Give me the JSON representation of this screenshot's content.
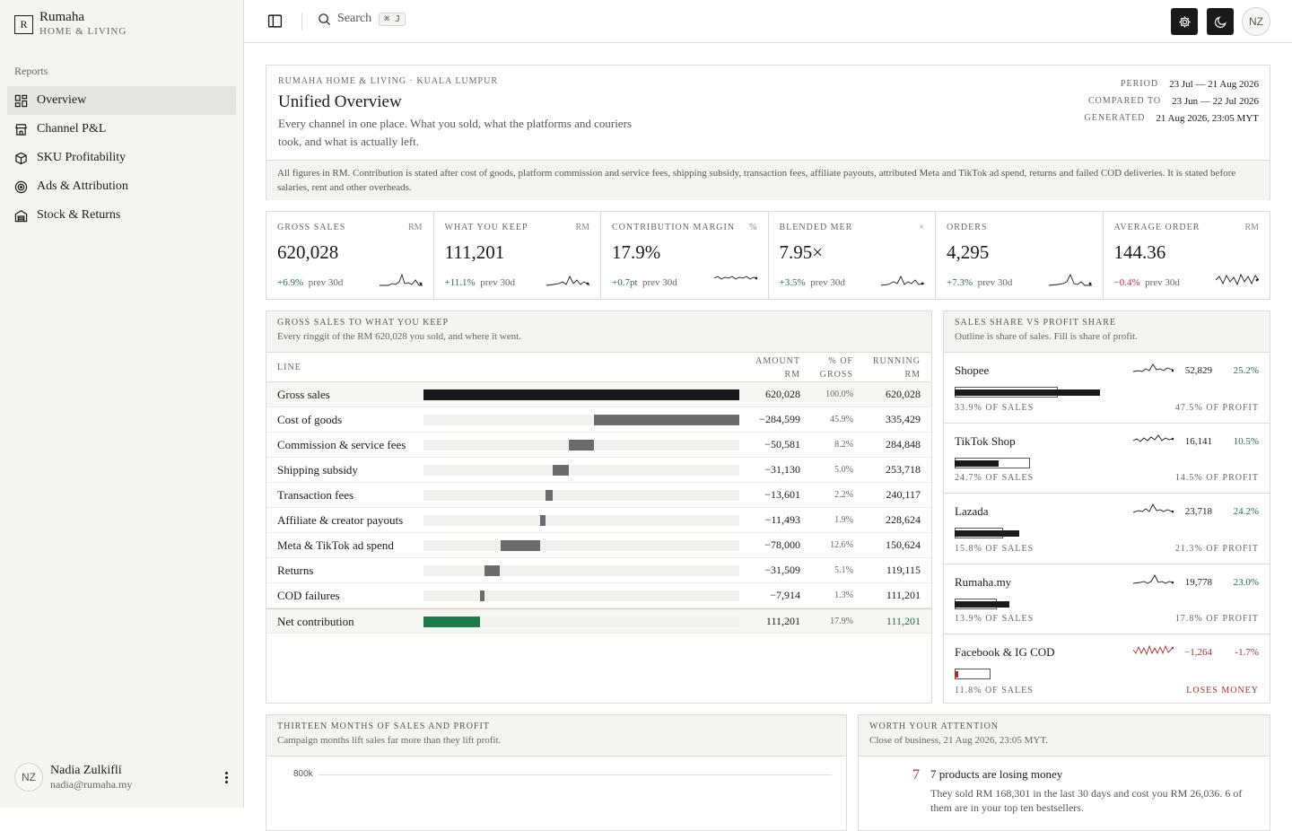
{
  "brand": {
    "initial": "R",
    "name": "Rumaha",
    "sub": "HOME & LIVING"
  },
  "nav": {
    "heading": "Reports",
    "items": [
      {
        "label": "Overview",
        "icon": "grid-icon"
      },
      {
        "label": "Channel P&L",
        "icon": "store-icon"
      },
      {
        "label": "SKU Profitability",
        "icon": "box-icon"
      },
      {
        "label": "Ads & Attribution",
        "icon": "target-icon"
      },
      {
        "label": "Stock & Returns",
        "icon": "warehouse-icon"
      }
    ]
  },
  "user": {
    "initials": "NZ",
    "name": "Nadia Zulkifli",
    "email": "nadia@rumaha.my"
  },
  "topbar": {
    "search_label": "Search",
    "shortcut": "⌘ J",
    "avatar": "NZ"
  },
  "header": {
    "eyebrow": "RUMAHA HOME & LIVING · KUALA LUMPUR",
    "title": "Unified Overview",
    "desc": "Every channel in one place. What you sold, what the platforms and couriers took, and what is actually left.",
    "meta": [
      {
        "k": "PERIOD",
        "v": "23 Jul — 21 Aug 2026"
      },
      {
        "k": "COMPARED TO",
        "v": "23 Jun — 22 Jul 2026"
      },
      {
        "k": "GENERATED",
        "v": "21 Aug 2026, 23:05 MYT"
      }
    ],
    "note": "All figures in RM. Contribution is stated after cost of goods, platform commission and service fees, shipping subsidy, transaction fees, affiliate payouts, attributed Meta and TikTok ad spend, returns and failed COD deliveries. It is stated before salaries, rent and other overheads."
  },
  "kpis": [
    {
      "label": "GROSS SALES",
      "unit": "RM",
      "value": "620,028",
      "delta": "+6.9%",
      "prev": "prev 30d",
      "neg": false
    },
    {
      "label": "WHAT YOU KEEP",
      "unit": "RM",
      "value": "111,201",
      "delta": "+11.1%",
      "prev": "prev 30d",
      "neg": false
    },
    {
      "label": "CONTRIBUTION MARGIN",
      "unit": "%",
      "value": "17.9%",
      "delta": "+0.7pt",
      "prev": "prev 30d",
      "neg": false
    },
    {
      "label": "BLENDED MER",
      "unit": "×",
      "value": "7.95×",
      "delta": "+3.5%",
      "prev": "prev 30d",
      "neg": false
    },
    {
      "label": "ORDERS",
      "unit": "",
      "value": "4,295",
      "delta": "+7.3%",
      "prev": "prev 30d",
      "neg": false
    },
    {
      "label": "AVERAGE ORDER",
      "unit": "RM",
      "value": "144.36",
      "delta": "−0.4%",
      "prev": "prev 30d",
      "neg": true
    }
  ],
  "waterfall": {
    "title": "GROSS SALES TO WHAT YOU KEEP",
    "sub": "Every ringgit of the RM 620,028 you sold, and where it went.",
    "cols": {
      "line": "LINE",
      "amount": "AMOUNT",
      "amount_unit": "RM",
      "pct": "% OF",
      "pct2": "GROSS",
      "run": "RUNNING",
      "run_unit": "RM"
    },
    "rows": [
      {
        "label": "Gross sales",
        "amount": "620,028",
        "pct": "100.0%",
        "run": "620,028",
        "start": 0,
        "end": 620028,
        "kind": "total"
      },
      {
        "label": "Cost of goods",
        "amount": "−284,599",
        "pct": "45.9%",
        "run": "335,429",
        "start": 335429,
        "end": 620028,
        "kind": "cost"
      },
      {
        "label": "Commission & service fees",
        "amount": "−50,581",
        "pct": "8.2%",
        "run": "284,848",
        "start": 284848,
        "end": 335429,
        "kind": "cost"
      },
      {
        "label": "Shipping subsidy",
        "amount": "−31,130",
        "pct": "5.0%",
        "run": "253,718",
        "start": 253718,
        "end": 284848,
        "kind": "cost"
      },
      {
        "label": "Transaction fees",
        "amount": "−13,601",
        "pct": "2.2%",
        "run": "240,117",
        "start": 240117,
        "end": 253718,
        "kind": "cost"
      },
      {
        "label": "Affiliate & creator payouts",
        "amount": "−11,493",
        "pct": "1.9%",
        "run": "228,624",
        "start": 228624,
        "end": 240117,
        "kind": "cost"
      },
      {
        "label": "Meta & TikTok ad spend",
        "amount": "−78,000",
        "pct": "12.6%",
        "run": "150,624",
        "start": 150624,
        "end": 228624,
        "kind": "cost"
      },
      {
        "label": "Returns",
        "amount": "−31,509",
        "pct": "5.1%",
        "run": "119,115",
        "start": 119115,
        "end": 150624,
        "kind": "cost"
      },
      {
        "label": "COD failures",
        "amount": "−7,914",
        "pct": "1.3%",
        "run": "111,201",
        "start": 111201,
        "end": 119115,
        "kind": "cost"
      },
      {
        "label": "Net contribution",
        "amount": "111,201",
        "pct": "17.9%",
        "run": "111,201",
        "start": 0,
        "end": 111201,
        "kind": "net"
      }
    ]
  },
  "share": {
    "title": "SALES SHARE VS PROFIT SHARE",
    "sub": "Outline is share of sales. Fill is share of profit.",
    "rows": [
      {
        "name": "Shopee",
        "value": "52,829",
        "pct": "25.2%",
        "sales_share": 33.9,
        "profit_share": 47.5,
        "left": "33.9% OF SALES",
        "right": "47.5% OF PROFIT",
        "neg": false
      },
      {
        "name": "TikTok Shop",
        "value": "16,141",
        "pct": "10.5%",
        "sales_share": 24.7,
        "profit_share": 14.5,
        "left": "24.7% OF SALES",
        "right": "14.5% OF PROFIT",
        "neg": false
      },
      {
        "name": "Lazada",
        "value": "23,718",
        "pct": "24.2%",
        "sales_share": 15.8,
        "profit_share": 21.3,
        "left": "15.8% OF SALES",
        "right": "21.3% OF PROFIT",
        "neg": false
      },
      {
        "name": "Rumaha.my",
        "value": "19,778",
        "pct": "23.0%",
        "sales_share": 13.9,
        "profit_share": 17.8,
        "left": "13.9% OF SALES",
        "right": "17.8% OF PROFIT",
        "neg": false
      },
      {
        "name": "Facebook & IG COD",
        "value": "−1,264",
        "pct": "-1.7%",
        "sales_share": 11.8,
        "profit_share": 1.1,
        "left": "11.8% OF SALES",
        "right": "LOSES MONEY",
        "neg": true
      }
    ]
  },
  "months": {
    "title": "THIRTEEN MONTHS OF SALES AND PROFIT",
    "sub": "Campaign months lift sales far more than they lift profit.",
    "y_tick": "800k"
  },
  "attention": {
    "title": "WORTH YOUR ATTENTION",
    "sub": "Close of business, 21 Aug 2026, 23:05 MYT.",
    "items": [
      {
        "num": "7",
        "title": "7 products are losing money",
        "body": "They sold RM 168,301 in the last 30 days and cost you RM 26,036. 6 of them are in your top ten bestsellers."
      }
    ]
  },
  "colors": {
    "ink": "#1a1a1a",
    "positive": "#2e6a45",
    "negative": "#a33333",
    "net_bar": "#1f7a4a"
  }
}
